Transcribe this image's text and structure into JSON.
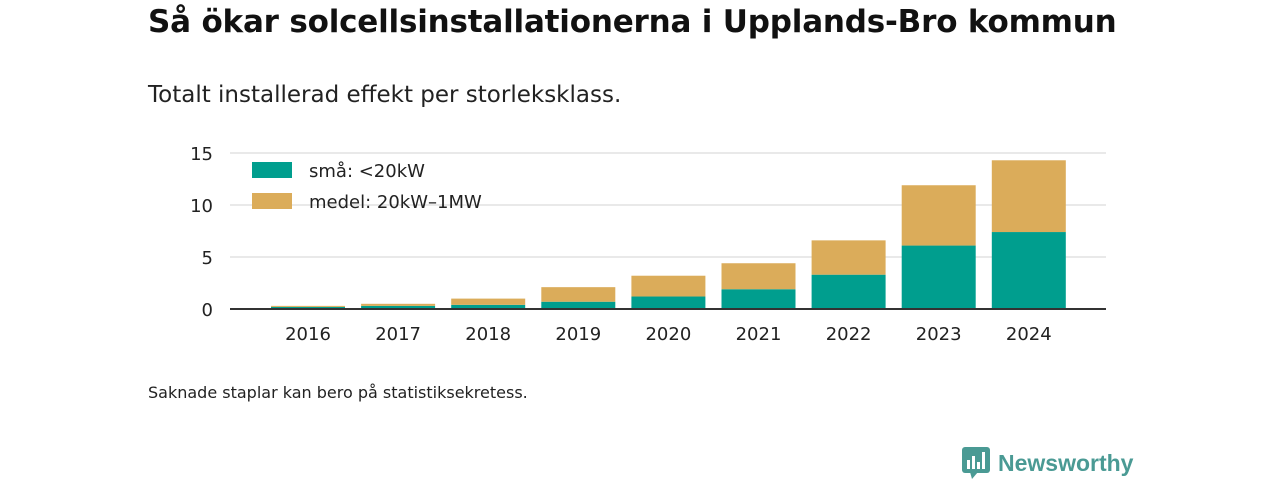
{
  "header": {
    "title": "Så ökar solcellsinstallationerna i Upplands-Bro kommun",
    "subtitle": "Totalt installerad effekt per storleksklass."
  },
  "footnote": "Saknade staplar kan bero på statistiksekretess.",
  "logo": {
    "text": "Newsworthy",
    "icon": "bar-chart-speech-bubble-icon",
    "color": "#4a9a94"
  },
  "chart_data": {
    "type": "bar",
    "stacked": true,
    "categories": [
      "2016",
      "2017",
      "2018",
      "2019",
      "2020",
      "2021",
      "2022",
      "2023",
      "2024"
    ],
    "series": [
      {
        "name": "små: <20kW",
        "color": "#009e8e",
        "values": [
          0.2,
          0.3,
          0.4,
          0.7,
          1.2,
          1.9,
          3.3,
          6.1,
          7.4
        ]
      },
      {
        "name": "medel: 20kW–1MW",
        "color": "#dbac5a",
        "values": [
          0.1,
          0.2,
          0.6,
          1.4,
          2.0,
          2.5,
          3.3,
          5.8,
          6.9
        ]
      }
    ],
    "yticks": [
      0,
      5,
      10,
      15
    ],
    "ylim": [
      0,
      15
    ],
    "grid": true,
    "legend_position": "top-left"
  }
}
